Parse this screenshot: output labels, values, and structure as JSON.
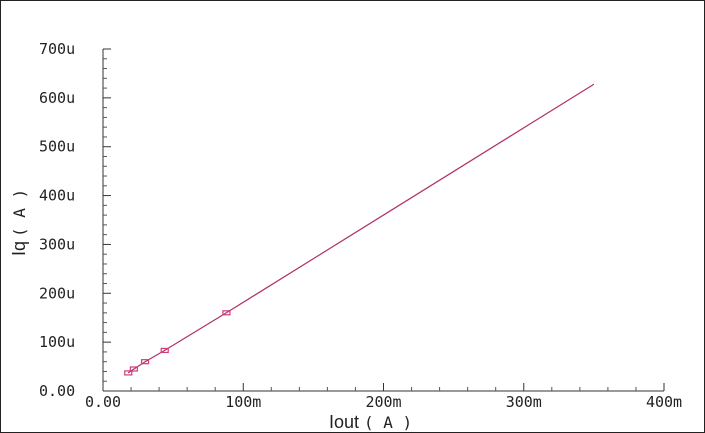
{
  "chart_data": {
    "type": "line",
    "xlabel": "Iout",
    "xunit": "( A )",
    "ylabel": "Iq",
    "yunit": "( A )",
    "xlim": [
      0,
      0.4
    ],
    "ylim": [
      0,
      0.0007
    ],
    "x_ticks": [
      {
        "value": 0,
        "label": "0.00"
      },
      {
        "value": 0.1,
        "label": "100m"
      },
      {
        "value": 0.2,
        "label": "200m"
      },
      {
        "value": 0.3,
        "label": "300m"
      },
      {
        "value": 0.4,
        "label": "400m"
      }
    ],
    "y_ticks": [
      {
        "value": 0,
        "label": "0.00"
      },
      {
        "value": 0.0001,
        "label": "100u"
      },
      {
        "value": 0.0002,
        "label": "200u"
      },
      {
        "value": 0.0003,
        "label": "300u"
      },
      {
        "value": 0.0004,
        "label": "400u"
      },
      {
        "value": 0.0005,
        "label": "500u"
      },
      {
        "value": 0.0006,
        "label": "600u"
      },
      {
        "value": 0.0007,
        "label": "700u"
      }
    ],
    "series": [
      {
        "color": "#b0306a",
        "x": [
          0.018,
          0.022,
          0.03,
          0.044,
          0.088,
          0.35
        ],
        "y": [
          3.7e-05,
          4.5e-05,
          6e-05,
          8.3e-05,
          0.00016,
          0.000628
        ]
      }
    ],
    "markers": {
      "color": "#d23a7a",
      "x": [
        0.018,
        0.022,
        0.03,
        0.044,
        0.088
      ],
      "y": [
        3.7e-05,
        4.5e-05,
        6e-05,
        8.3e-05,
        0.00016
      ]
    },
    "grid": false
  }
}
